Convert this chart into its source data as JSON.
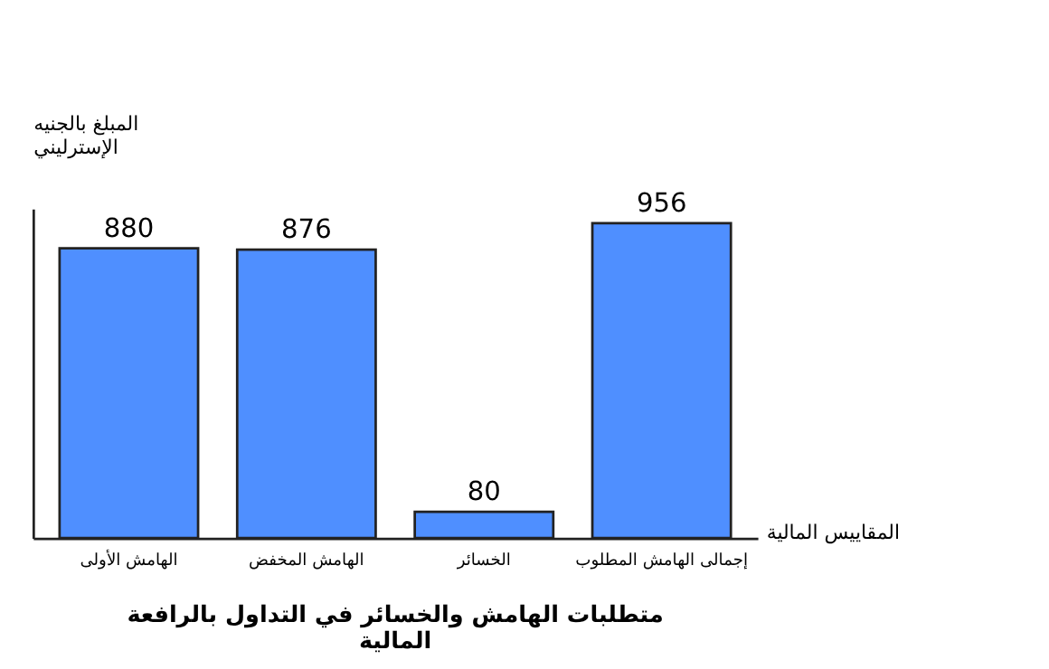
{
  "chart_data": {
    "type": "bar",
    "title": "متطلبات الهامش والخسائر في التداول بالرافعة المالية",
    "xlabel": "المقاييس المالية",
    "ylabel": "المبلغ بالجنيه الإسترليني",
    "categories": [
      "الهامش الأولى",
      "الهامش المخفض",
      "الخسائر",
      "إجمالى الهامش المطلوب"
    ],
    "values": [
      880,
      876,
      80,
      956
    ],
    "color": "#4f8fff",
    "data_labels": true
  }
}
